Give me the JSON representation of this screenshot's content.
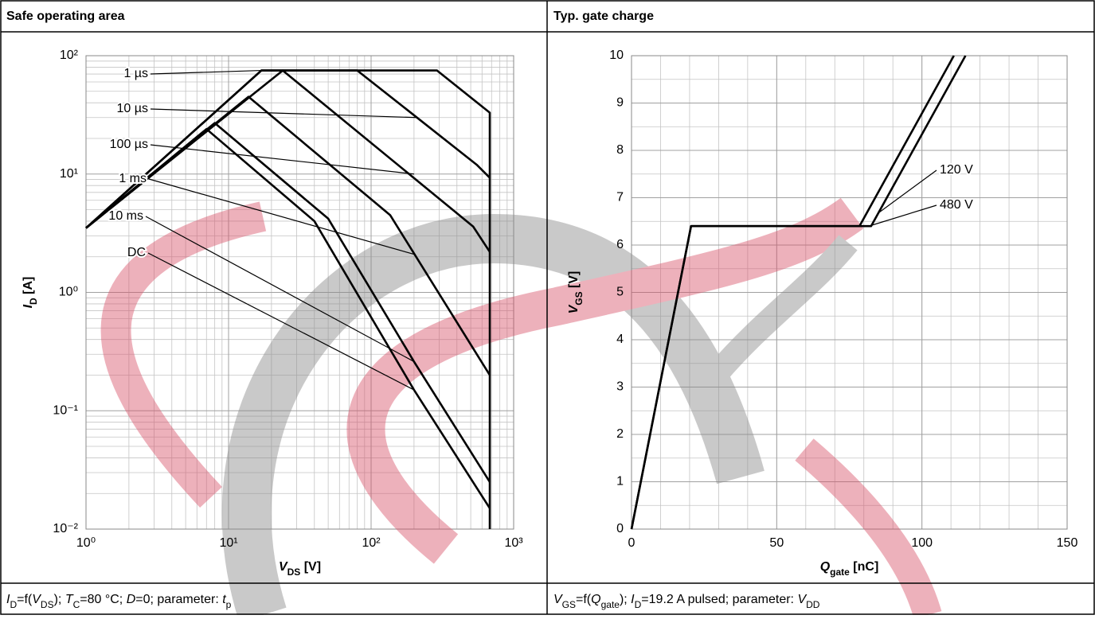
{
  "chart_data": [
    {
      "type": "line",
      "title": "Safe operating area",
      "xscale": "log",
      "yscale": "log",
      "xlim": [
        1,
        1000
      ],
      "ylim": [
        0.01,
        100
      ],
      "xticks": [
        {
          "value": 1,
          "label": "10⁰"
        },
        {
          "value": 10,
          "label": "10¹"
        },
        {
          "value": 100,
          "label": "10²"
        },
        {
          "value": 1000,
          "label": "10³"
        }
      ],
      "yticks": [
        {
          "value": 0.01,
          "label": "10⁻²"
        },
        {
          "value": 0.1,
          "label": "10⁻¹"
        },
        {
          "value": 1,
          "label": "10⁰"
        },
        {
          "value": 10,
          "label": "10¹"
        },
        {
          "value": 100,
          "label": "10²"
        }
      ],
      "grid": true,
      "minor_grid": true,
      "xlabel": [
        {
          "text": "V",
          "style": "italic"
        },
        {
          "text": "DS",
          "style": "sub"
        },
        {
          "text": " [V]",
          "style": "normal"
        }
      ],
      "ylabel": [
        {
          "text": "I",
          "style": "italic"
        },
        {
          "text": "D",
          "style": "sub"
        },
        {
          "text": " [A]",
          "style": "normal"
        }
      ],
      "caption": [
        {
          "text": "I",
          "style": "italic"
        },
        {
          "text": "D",
          "style": "sub"
        },
        {
          "text": "=f(",
          "style": "normal"
        },
        {
          "text": "V",
          "style": "italic"
        },
        {
          "text": "DS",
          "style": "sub"
        },
        {
          "text": "); ",
          "style": "normal"
        },
        {
          "text": "T",
          "style": "italic"
        },
        {
          "text": "C",
          "style": "sub"
        },
        {
          "text": "=80 °C; ",
          "style": "normal"
        },
        {
          "text": "D",
          "style": "italic"
        },
        {
          "text": "=0; parameter: ",
          "style": "normal"
        },
        {
          "text": "t",
          "style": "italic"
        },
        {
          "text": "p",
          "style": "sub"
        }
      ],
      "series": [
        {
          "name": "1 µs",
          "color": "#000000",
          "x": [
            1,
            17,
            290,
            680,
            680
          ],
          "values": [
            3.5,
            75,
            75,
            33,
            0.01
          ],
          "label_point": [
            17,
            75
          ]
        },
        {
          "name": "10 µs",
          "color": "#000000",
          "x": [
            1,
            17,
            80,
            550,
            680
          ],
          "values": [
            3.5,
            75,
            75,
            12,
            9.3
          ],
          "label_point": [
            210,
            30
          ]
        },
        {
          "name": "100 µs",
          "color": "#000000",
          "x": [
            1,
            24,
            520,
            680
          ],
          "values": [
            3.5,
            75,
            3.6,
            2.2
          ],
          "label_point": [
            200,
            10
          ]
        },
        {
          "name": "1 ms",
          "color": "#000000",
          "x": [
            1,
            13.8,
            136,
            680
          ],
          "values": [
            3.5,
            45,
            4.5,
            0.2
          ],
          "label_point": [
            200,
            2.1
          ]
        },
        {
          "name": "10 ms",
          "color": "#000000",
          "x": [
            1,
            8,
            50,
            200,
            680
          ],
          "values": [
            3.5,
            27,
            4.2,
            0.26,
            0.025
          ],
          "label_point": [
            200,
            0.26
          ]
        },
        {
          "name": "DC",
          "color": "#000000",
          "x": [
            1,
            7,
            40,
            200,
            680
          ],
          "values": [
            3.5,
            24,
            4,
            0.15,
            0.015
          ],
          "label_point": [
            200,
            0.15
          ]
        }
      ]
    },
    {
      "type": "line",
      "title": "Typ. gate charge",
      "xscale": "linear",
      "yscale": "linear",
      "xlim": [
        0,
        150
      ],
      "ylim": [
        0,
        10
      ],
      "xticks": [
        0,
        50,
        100,
        150
      ],
      "yticks": [
        0,
        1,
        2,
        3,
        4,
        5,
        6,
        7,
        8,
        9,
        10
      ],
      "grid": true,
      "minor_grid": true,
      "xgrid_step": 10,
      "ygrid_step": 0.5,
      "xlabel": [
        {
          "text": "Q",
          "style": "italic"
        },
        {
          "text": "gate",
          "style": "sub"
        },
        {
          "text": " [nC]",
          "style": "normal"
        }
      ],
      "ylabel": [
        {
          "text": "V",
          "style": "italic"
        },
        {
          "text": "GS",
          "style": "sub"
        },
        {
          "text": " [V]",
          "style": "normal"
        }
      ],
      "caption": [
        {
          "text": "V",
          "style": "italic"
        },
        {
          "text": "GS",
          "style": "sub"
        },
        {
          "text": "=f(",
          "style": "normal"
        },
        {
          "text": "Q",
          "style": "italic"
        },
        {
          "text": "gate",
          "style": "sub"
        },
        {
          "text": "); ",
          "style": "normal"
        },
        {
          "text": "I",
          "style": "italic"
        },
        {
          "text": "D",
          "style": "sub"
        },
        {
          "text": "=19.2 A pulsed; parameter: ",
          "style": "normal"
        },
        {
          "text": "V",
          "style": "italic"
        },
        {
          "text": "DD",
          "style": "sub"
        }
      ],
      "series": [
        {
          "name": "120 V",
          "color": "#000000",
          "x": [
            0,
            20.5,
            78.5,
            111
          ],
          "values": [
            0,
            6.4,
            6.4,
            10
          ],
          "label_point": [
            85.5,
            6.7
          ]
        },
        {
          "name": "480 V",
          "color": "#000000",
          "x": [
            0,
            20.5,
            82.5,
            115
          ],
          "values": [
            0,
            6.4,
            6.4,
            10
          ],
          "label_point": [
            82.8,
            6.42
          ]
        }
      ]
    }
  ]
}
